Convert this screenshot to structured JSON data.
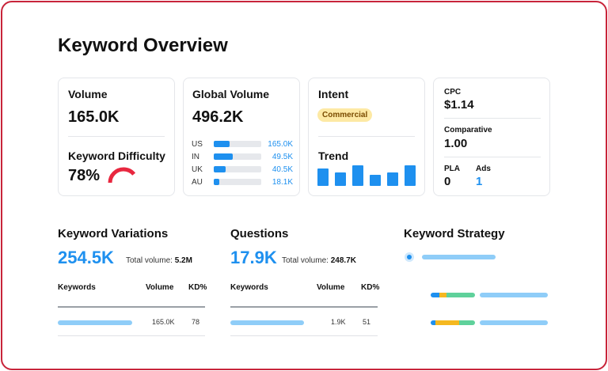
{
  "page": {
    "title": "Keyword Overview"
  },
  "volume_card": {
    "volume_label": "Volume",
    "volume_value": "165.0K",
    "kd_label": "Keyword Difficulty",
    "kd_value": "78%",
    "kd_percent": 78,
    "kd_color": "#e8273f"
  },
  "global_card": {
    "label": "Global Volume",
    "value": "496.2K",
    "countries": [
      {
        "code": "US",
        "value": "165.0K",
        "share": 0.33
      },
      {
        "code": "IN",
        "value": "49.5K",
        "share": 0.4
      },
      {
        "code": "UK",
        "value": "40.5K",
        "share": 0.25
      },
      {
        "code": "AU",
        "value": "18.1K",
        "share": 0.12
      }
    ]
  },
  "intent_card": {
    "intent_label": "Intent",
    "intent_value": "Commercial",
    "trend_label": "Trend",
    "trend": [
      0.85,
      0.65,
      1.0,
      0.55,
      0.65,
      1.0
    ]
  },
  "metrics_card": {
    "cpc_label": "CPC",
    "cpc_value": "$1.14",
    "comparative_label": "Comparative",
    "comparative_value": "1.00",
    "pla_label": "PLA",
    "pla_value": "0",
    "ads_label": "Ads",
    "ads_value": "1"
  },
  "variations": {
    "title": "Keyword Variations",
    "count": "254.5K",
    "total_label": "Total volume:",
    "total_value": "5.2M",
    "columns": [
      "Keywords",
      "Volume",
      "KD%"
    ],
    "row": {
      "volume": "165.0K",
      "kd": "78"
    }
  },
  "questions": {
    "title": "Questions",
    "count": "17.9K",
    "total_label": "Total volume:",
    "total_value": "248.7K",
    "columns": [
      "Keywords",
      "Volume",
      "KD%"
    ],
    "row": {
      "volume": "1.9K",
      "kd": "51"
    }
  },
  "strategy": {
    "title": "Keyword Strategy"
  },
  "colors": {
    "accent_blue": "#1e90ef",
    "light_blue": "#8fcdf8",
    "frame_red": "#c8243a",
    "intent_badge": "#fde9a4",
    "segment_orange": "#f5b820",
    "segment_green": "#5fd19b"
  }
}
